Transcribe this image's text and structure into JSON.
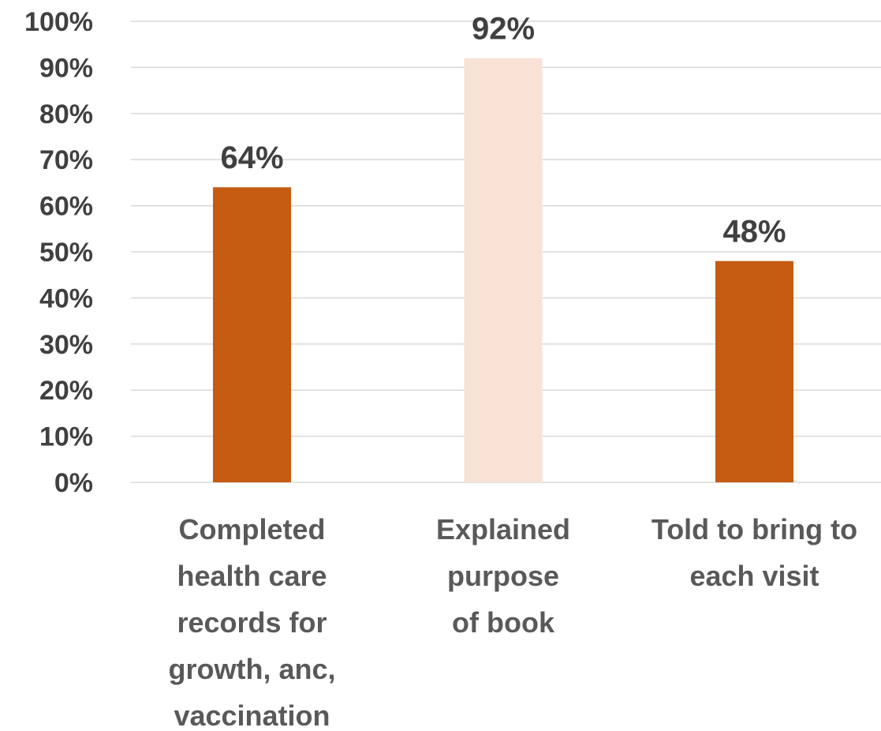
{
  "chart_data": {
    "type": "bar",
    "categories": [
      [
        "Completed",
        "health care",
        "records for",
        "growth, anc,",
        "vaccination"
      ],
      [
        "Explained",
        "purpose",
        "of book"
      ],
      [
        "Told to bring to",
        "each visit"
      ]
    ],
    "values": [
      64,
      92,
      48
    ],
    "data_labels": [
      "64%",
      "92%",
      "48%"
    ],
    "bar_colors": [
      "#c55a11",
      "#f8e1d5",
      "#c55a11"
    ],
    "ylim": [
      0,
      100
    ],
    "yticks": [
      0,
      10,
      20,
      30,
      40,
      50,
      60,
      70,
      80,
      90,
      100
    ],
    "ytick_labels": [
      "0%",
      "10%",
      "20%",
      "30%",
      "40%",
      "50%",
      "60%",
      "70%",
      "80%",
      "90%",
      "100%"
    ],
    "grid": true,
    "legend": "none",
    "title": "",
    "xlabel": "",
    "ylabel": ""
  }
}
